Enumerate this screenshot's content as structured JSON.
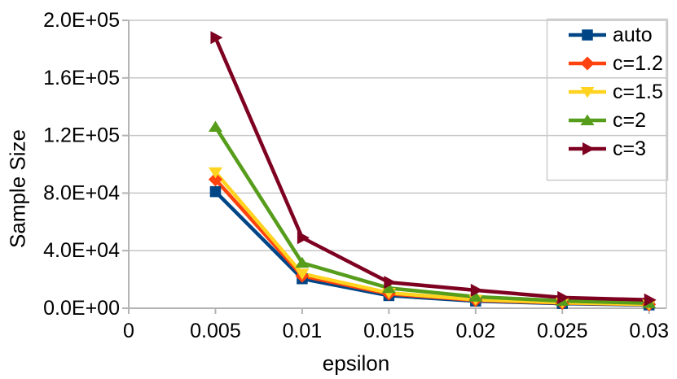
{
  "chart_data": {
    "type": "line",
    "title": "",
    "xlabel": "epsilon",
    "ylabel": "Sample Size",
    "x": [
      0.005,
      0.01,
      0.015,
      0.02,
      0.025,
      0.03
    ],
    "series": [
      {
        "name": "auto",
        "color": "#004586",
        "marker": "square",
        "values": [
          81000,
          20500,
          8800,
          5000,
          3300,
          2300
        ]
      },
      {
        "name": "c=1.2",
        "color": "#FF420E",
        "marker": "diamond",
        "values": [
          89500,
          22500,
          10000,
          5600,
          3700,
          2600
        ]
      },
      {
        "name": "c=1.5",
        "color": "#FFD320",
        "marker": "triangle-down",
        "values": [
          94500,
          24000,
          10700,
          6000,
          3900,
          2700
        ]
      },
      {
        "name": "c=2",
        "color": "#579D1C",
        "marker": "triangle-up",
        "values": [
          126000,
          31500,
          14000,
          8000,
          5100,
          3500
        ]
      },
      {
        "name": "c=3",
        "color": "#7E0021",
        "marker": "triangle-right",
        "values": [
          188000,
          49000,
          18000,
          12500,
          7400,
          5800
        ]
      }
    ],
    "xlim": [
      0,
      0.031
    ],
    "ylim": [
      0,
      200000
    ],
    "xticks": [
      {
        "value": 0,
        "label": "0"
      },
      {
        "value": 0.005,
        "label": "0.005"
      },
      {
        "value": 0.01,
        "label": "0.01"
      },
      {
        "value": 0.015,
        "label": "0.015"
      },
      {
        "value": 0.02,
        "label": "0.02"
      },
      {
        "value": 0.025,
        "label": "0.025"
      },
      {
        "value": 0.03,
        "label": "0.03"
      }
    ],
    "yticks": [
      {
        "value": 0,
        "label": "0.0E+00"
      },
      {
        "value": 40000,
        "label": "4.0E+04"
      },
      {
        "value": 80000,
        "label": "8.0E+04"
      },
      {
        "value": 120000,
        "label": "1.2E+05"
      },
      {
        "value": 160000,
        "label": "1.6E+05"
      },
      {
        "value": 200000,
        "label": "2.0E+05"
      }
    ],
    "grid": true,
    "legend_position": "top-right",
    "colors": {
      "axis": "#B3B3B3",
      "gridline": "#C6C6C6",
      "legend_border": "#CCCCCC",
      "text": "#000000",
      "background": "#FFFFFF"
    }
  }
}
